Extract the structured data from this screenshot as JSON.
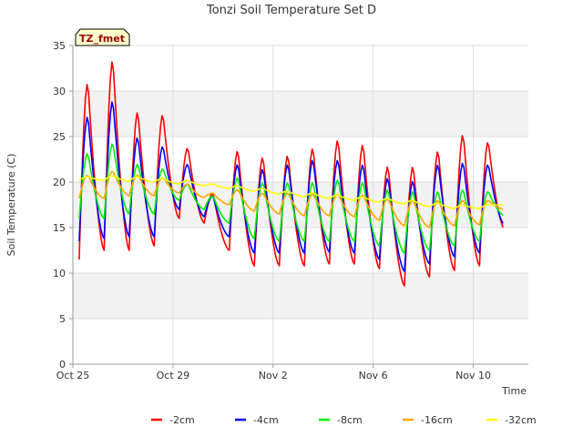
{
  "chart_data": {
    "type": "line",
    "title": "Tonzi Soil Temperature Set D",
    "xlabel": "Time",
    "ylabel": "Soil Temperature (C)",
    "site_label": "TZ_fmet",
    "ylim": [
      0,
      35
    ],
    "xlim": [
      0,
      18.2
    ],
    "y_ticks": [
      0,
      5,
      10,
      15,
      20,
      25,
      30,
      35
    ],
    "x_ticks": [
      {
        "value": 0,
        "label": "Oct 25"
      },
      {
        "value": 4,
        "label": "Oct 29"
      },
      {
        "value": 8,
        "label": "Nov 2"
      },
      {
        "value": 12,
        "label": "Nov 6"
      },
      {
        "value": 16,
        "label": "Nov 10"
      }
    ],
    "grid": true,
    "legend_position": "bottom",
    "x_units": "days since Oct 25",
    "series": [
      {
        "name": "-2cm",
        "color": "#ff0000",
        "daily_extremes": [
          {
            "day": 0,
            "min": 11.5,
            "max": 31.0
          },
          {
            "day": 1,
            "min": 12.5,
            "max": 33.5
          },
          {
            "day": 2,
            "min": 12.5,
            "max": 27.8
          },
          {
            "day": 3,
            "min": 13.0,
            "max": 27.5
          },
          {
            "day": 4,
            "min": 16.0,
            "max": 23.8
          },
          {
            "day": 5,
            "min": 15.5,
            "max": 18.8
          },
          {
            "day": 6,
            "min": 12.5,
            "max": 23.5
          },
          {
            "day": 7,
            "min": 10.8,
            "max": 22.8
          },
          {
            "day": 8,
            "min": 10.8,
            "max": 23.0
          },
          {
            "day": 9,
            "min": 10.8,
            "max": 23.8
          },
          {
            "day": 10,
            "min": 11.0,
            "max": 24.7
          },
          {
            "day": 11,
            "min": 11.0,
            "max": 24.2
          },
          {
            "day": 12,
            "min": 10.5,
            "max": 21.8
          },
          {
            "day": 13,
            "min": 8.6,
            "max": 21.8
          },
          {
            "day": 14,
            "min": 9.6,
            "max": 23.5
          },
          {
            "day": 15,
            "min": 10.3,
            "max": 25.3
          },
          {
            "day": 16,
            "min": 10.8,
            "max": 24.5
          },
          {
            "day": 17,
            "min": 14.8,
            "max": 15.8
          }
        ]
      },
      {
        "name": "-4cm",
        "color": "#0000ff",
        "daily_extremes": [
          {
            "day": 0,
            "min": 13.5,
            "max": 27.3
          },
          {
            "day": 1,
            "min": 13.8,
            "max": 29.0
          },
          {
            "day": 2,
            "min": 14.0,
            "max": 25.0
          },
          {
            "day": 3,
            "min": 14.0,
            "max": 24.0
          },
          {
            "day": 4,
            "min": 17.0,
            "max": 22.0
          },
          {
            "day": 5,
            "min": 16.2,
            "max": 18.5
          },
          {
            "day": 6,
            "min": 14.0,
            "max": 22.0
          },
          {
            "day": 7,
            "min": 12.2,
            "max": 21.5
          },
          {
            "day": 8,
            "min": 12.2,
            "max": 22.0
          },
          {
            "day": 9,
            "min": 12.2,
            "max": 22.5
          },
          {
            "day": 10,
            "min": 12.3,
            "max": 22.5
          },
          {
            "day": 11,
            "min": 12.2,
            "max": 22.0
          },
          {
            "day": 12,
            "min": 11.5,
            "max": 20.5
          },
          {
            "day": 13,
            "min": 10.2,
            "max": 20.2
          },
          {
            "day": 14,
            "min": 11.0,
            "max": 22.0
          },
          {
            "day": 15,
            "min": 11.8,
            "max": 22.2
          },
          {
            "day": 16,
            "min": 12.2,
            "max": 22.0
          },
          {
            "day": 17,
            "min": 15.3,
            "max": 15.8
          }
        ]
      },
      {
        "name": "-8cm",
        "color": "#00ee00",
        "daily_extremes": [
          {
            "day": 0,
            "min": 16.0,
            "max": 23.2
          },
          {
            "day": 1,
            "min": 16.0,
            "max": 24.3
          },
          {
            "day": 2,
            "min": 16.5,
            "max": 22.0
          },
          {
            "day": 3,
            "min": 16.5,
            "max": 21.5
          },
          {
            "day": 4,
            "min": 18.0,
            "max": 19.8
          },
          {
            "day": 5,
            "min": 17.0,
            "max": 18.5
          },
          {
            "day": 6,
            "min": 15.5,
            "max": 20.5
          },
          {
            "day": 7,
            "min": 13.8,
            "max": 20.0
          },
          {
            "day": 8,
            "min": 13.5,
            "max": 20.0
          },
          {
            "day": 9,
            "min": 13.5,
            "max": 20.0
          },
          {
            "day": 10,
            "min": 13.5,
            "max": 20.3
          },
          {
            "day": 11,
            "min": 13.5,
            "max": 20.0
          },
          {
            "day": 12,
            "min": 13.0,
            "max": 19.2
          },
          {
            "day": 13,
            "min": 12.2,
            "max": 19.0
          },
          {
            "day": 14,
            "min": 12.5,
            "max": 19.0
          },
          {
            "day": 15,
            "min": 13.0,
            "max": 19.2
          },
          {
            "day": 16,
            "min": 13.5,
            "max": 19.0
          },
          {
            "day": 17,
            "min": 16.3,
            "max": 17.0
          }
        ]
      },
      {
        "name": "-16cm",
        "color": "#ffa500",
        "daily_extremes": [
          {
            "day": 0,
            "min": 18.2,
            "max": 20.8
          },
          {
            "day": 1,
            "min": 18.2,
            "max": 21.2
          },
          {
            "day": 2,
            "min": 18.5,
            "max": 20.8
          },
          {
            "day": 3,
            "min": 18.5,
            "max": 20.5
          },
          {
            "day": 4,
            "min": 18.8,
            "max": 19.8
          },
          {
            "day": 5,
            "min": 18.3,
            "max": 18.8
          },
          {
            "day": 6,
            "min": 17.5,
            "max": 19.2
          },
          {
            "day": 7,
            "min": 16.8,
            "max": 18.8
          },
          {
            "day": 8,
            "min": 16.5,
            "max": 18.8
          },
          {
            "day": 9,
            "min": 16.3,
            "max": 18.7
          },
          {
            "day": 10,
            "min": 16.3,
            "max": 18.7
          },
          {
            "day": 11,
            "min": 16.2,
            "max": 18.6
          },
          {
            "day": 12,
            "min": 15.8,
            "max": 18.2
          },
          {
            "day": 13,
            "min": 15.2,
            "max": 18.0
          },
          {
            "day": 14,
            "min": 15.0,
            "max": 18.0
          },
          {
            "day": 15,
            "min": 15.2,
            "max": 18.0
          },
          {
            "day": 16,
            "min": 15.3,
            "max": 18.0
          },
          {
            "day": 17,
            "min": 17.0,
            "max": 17.2
          }
        ]
      },
      {
        "name": "-32cm",
        "color": "#ffff00",
        "daily_extremes": [
          {
            "day": 0,
            "min": 20.2,
            "max": 20.6
          },
          {
            "day": 1,
            "min": 20.2,
            "max": 20.7
          },
          {
            "day": 2,
            "min": 20.1,
            "max": 20.6
          },
          {
            "day": 3,
            "min": 20.0,
            "max": 20.4
          },
          {
            "day": 4,
            "min": 19.8,
            "max": 20.2
          },
          {
            "day": 5,
            "min": 19.6,
            "max": 19.8
          },
          {
            "day": 6,
            "min": 19.3,
            "max": 19.6
          },
          {
            "day": 7,
            "min": 19.0,
            "max": 19.3
          },
          {
            "day": 8,
            "min": 18.7,
            "max": 19.0
          },
          {
            "day": 9,
            "min": 18.4,
            "max": 18.8
          },
          {
            "day": 10,
            "min": 18.2,
            "max": 18.6
          },
          {
            "day": 11,
            "min": 18.0,
            "max": 18.4
          },
          {
            "day": 12,
            "min": 17.8,
            "max": 18.2
          },
          {
            "day": 13,
            "min": 17.6,
            "max": 18.0
          },
          {
            "day": 14,
            "min": 17.3,
            "max": 17.7
          },
          {
            "day": 15,
            "min": 17.1,
            "max": 17.5
          },
          {
            "day": 16,
            "min": 17.1,
            "max": 17.5
          },
          {
            "day": 17,
            "min": 17.5,
            "max": 17.7
          }
        ]
      }
    ]
  }
}
